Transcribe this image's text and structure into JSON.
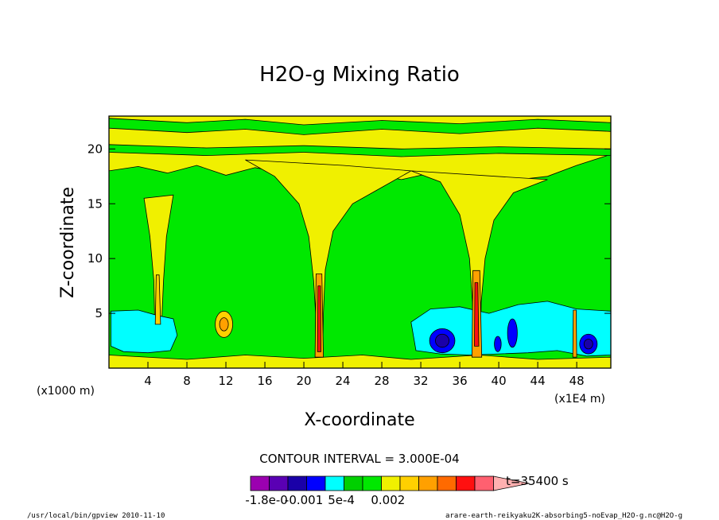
{
  "chart_data": {
    "type": "heatmap",
    "title": "H2O-g Mixing Ratio",
    "xlabel": "X-coordinate",
    "ylabel": "Z-coordinate",
    "x_unit": "(x1E4 m)",
    "y_unit": "(x1000 m)",
    "xlim": [
      0,
      51.5
    ],
    "ylim": [
      0,
      23
    ],
    "x_ticks": [
      4,
      8,
      12,
      16,
      20,
      24,
      28,
      32,
      36,
      40,
      44,
      48
    ],
    "x_tick_labels": [
      "4",
      "8",
      "12",
      "16",
      "20",
      "24",
      "28",
      "32",
      "36",
      "40",
      "44",
      "48"
    ],
    "y_ticks": [
      5,
      10,
      15,
      20
    ],
    "y_tick_labels": [
      "5",
      "10",
      "15",
      "20"
    ],
    "contour_interval_text": "CONTOUR INTERVAL = 3.000E-04",
    "time_text": "t=35400 s",
    "colorbar": {
      "levels": [
        -0.0018,
        -0.0015,
        -0.0012,
        -0.0009,
        -0.0006,
        -0.0003,
        0,
        0.0003,
        0.0006,
        0.0009,
        0.0012,
        0.0015,
        0.0018,
        0.0021
      ],
      "colors": [
        "#9b00b0",
        "#5a00b4",
        "#1a00a8",
        "#0000ff",
        "#00ffff",
        "#00d000",
        "#00e800",
        "#f0f000",
        "#ffd000",
        "#ffa000",
        "#ff6a00",
        "#ff1010",
        "#ff6070",
        "#ffb0b0"
      ],
      "tick_labels": [
        "-1.8e-0",
        "-0.001",
        "5e-4",
        "0.002"
      ],
      "extend": "max"
    },
    "regions": [
      {
        "level": "green",
        "desc": "main background",
        "x": [
          0,
          51.5
        ],
        "z": [
          0,
          23
        ]
      },
      {
        "level": "yellow",
        "desc": "upper band",
        "x": [
          0,
          51.5
        ],
        "z": [
          17.5,
          23
        ]
      },
      {
        "level": "yellow",
        "desc": "plume 1",
        "x": [
          4,
          6
        ],
        "z": [
          3,
          16
        ]
      },
      {
        "level": "yellow",
        "desc": "plume 2",
        "x": [
          19,
          24
        ],
        "z": [
          0,
          18
        ]
      },
      {
        "level": "yellow",
        "desc": "plume 3",
        "x": [
          36.5,
          39
        ],
        "z": [
          0,
          17
        ]
      },
      {
        "level": "cyan",
        "desc": "low cyan 1",
        "x": [
          0,
          7
        ],
        "z": [
          1.5,
          5
        ]
      },
      {
        "level": "cyan",
        "desc": "low cyan 2",
        "x": [
          31,
          51.5
        ],
        "z": [
          1,
          6
        ]
      },
      {
        "level": "blue",
        "desc": "dry core 1",
        "x": [
          33,
          35.5
        ],
        "z": [
          1.5,
          3.5
        ]
      },
      {
        "level": "blue",
        "desc": "dry core 2",
        "x": [
          48.5,
          50
        ],
        "z": [
          1.5,
          3
        ]
      },
      {
        "level": "orange",
        "desc": "moist blob",
        "x": [
          11,
          13
        ],
        "z": [
          3,
          5
        ]
      }
    ]
  },
  "footer": {
    "left": "/usr/local/bin/gpview  2010-11-10",
    "right": "arare-earth-reikyaku2K-absorbing5-noEvap_H2O-g.nc@H2O-g"
  }
}
